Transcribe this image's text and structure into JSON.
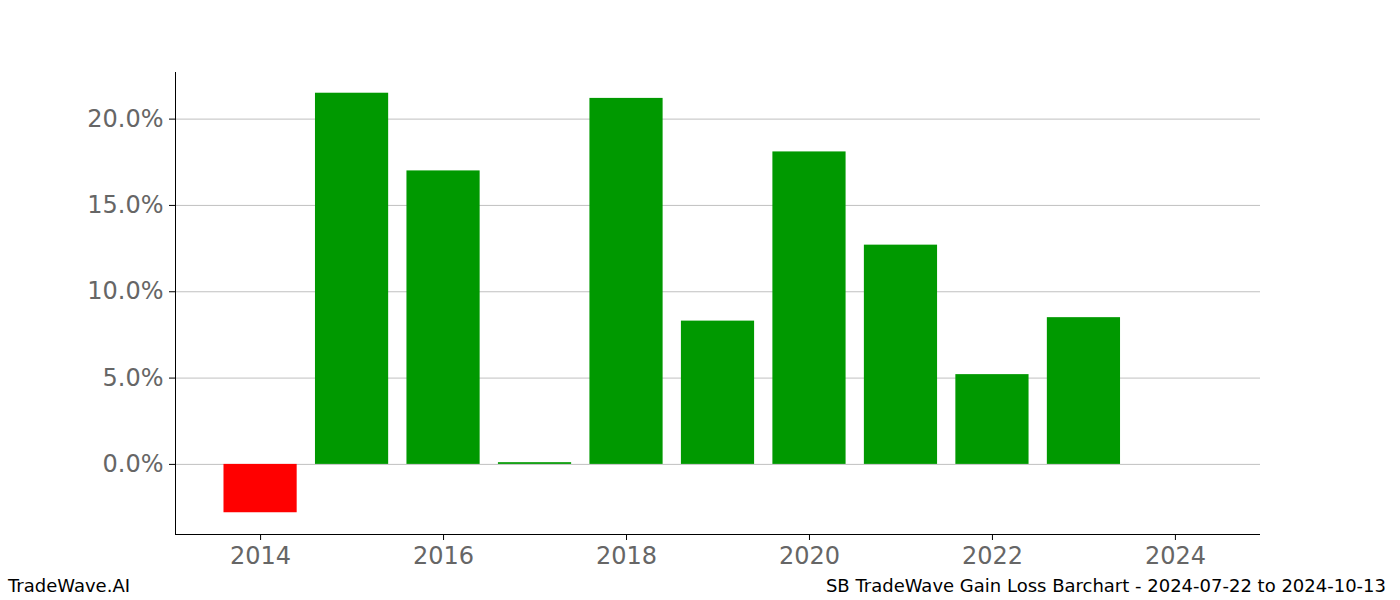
{
  "chart_data": {
    "type": "bar",
    "source": "TradeWave.AI",
    "caption": "SB TradeWave Gain Loss Barchart - 2024-07-22 to 2024-10-13",
    "categories": [
      2014,
      2015,
      2016,
      2017,
      2018,
      2019,
      2020,
      2021,
      2022,
      2023
    ],
    "values": [
      -2.8,
      21.5,
      17.0,
      0.1,
      21.2,
      8.3,
      18.1,
      12.7,
      5.2,
      8.5
    ],
    "colors": [
      "#ff0000",
      "#009900",
      "#009900",
      "#009900",
      "#009900",
      "#009900",
      "#009900",
      "#009900",
      "#009900",
      "#009900"
    ],
    "xlim": [
      2013.07,
      2024.93
    ],
    "xticks": [
      2014,
      2016,
      2018,
      2020,
      2022,
      2024
    ],
    "ylim": [
      -4.06,
      22.7
    ],
    "yticks": [
      {
        "value": 0,
        "label": "0.0%"
      },
      {
        "value": 5,
        "label": "5.0%"
      },
      {
        "value": 10,
        "label": "10.0%"
      },
      {
        "value": 15,
        "label": "15.0%"
      },
      {
        "value": 20,
        "label": "20.0%"
      }
    ],
    "grid": true
  }
}
